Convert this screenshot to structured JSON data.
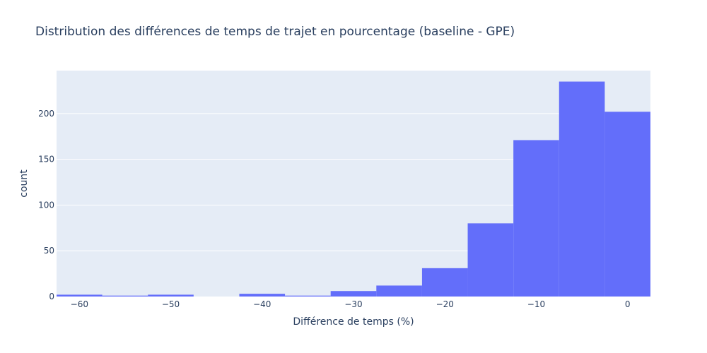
{
  "chart_data": {
    "type": "bar",
    "title": "Distribution des différences de temps de trajet en pourcentage (baseline - GPE)",
    "xlabel": "Différence de temps (%)",
    "ylabel": "count",
    "xlim": [
      -62.5,
      2.5
    ],
    "ylim": [
      0,
      247
    ],
    "x_ticks": [
      -60,
      -50,
      -40,
      -30,
      -20,
      -10,
      0
    ],
    "x_tick_labels": [
      "−60",
      "−50",
      "−40",
      "−30",
      "−20",
      "−10",
      "0"
    ],
    "y_ticks": [
      0,
      50,
      100,
      150,
      200
    ],
    "y_tick_labels": [
      "0",
      "50",
      "100",
      "150",
      "200"
    ],
    "bins": [
      {
        "x0": -62.5,
        "x1": -57.5,
        "count": 2
      },
      {
        "x0": -57.5,
        "x1": -52.5,
        "count": 1
      },
      {
        "x0": -52.5,
        "x1": -47.5,
        "count": 2
      },
      {
        "x0": -47.5,
        "x1": -42.5,
        "count": 0
      },
      {
        "x0": -42.5,
        "x1": -37.5,
        "count": 3
      },
      {
        "x0": -37.5,
        "x1": -32.5,
        "count": 1
      },
      {
        "x0": -32.5,
        "x1": -27.5,
        "count": 6
      },
      {
        "x0": -27.5,
        "x1": -22.5,
        "count": 12
      },
      {
        "x0": -22.5,
        "x1": -17.5,
        "count": 31
      },
      {
        "x0": -17.5,
        "x1": -12.5,
        "count": 80
      },
      {
        "x0": -12.5,
        "x1": -7.5,
        "count": 171
      },
      {
        "x0": -7.5,
        "x1": -2.5,
        "count": 235
      },
      {
        "x0": -2.5,
        "x1": 2.5,
        "count": 202
      }
    ],
    "grid": true,
    "colors": {
      "bar": "#636efa",
      "plot_bg": "#e5ecf6",
      "grid": "#ffffff",
      "text": "#2a3f5f"
    }
  }
}
